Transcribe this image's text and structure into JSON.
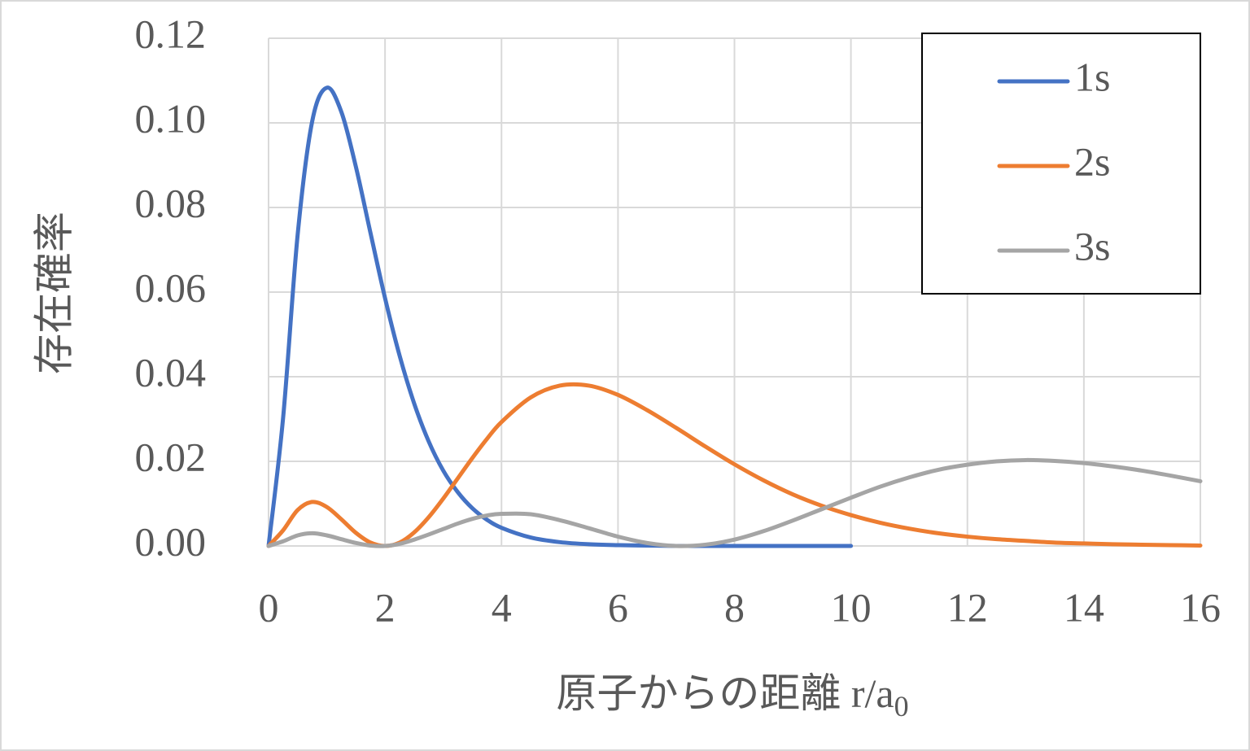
{
  "chart_data": {
    "type": "line",
    "y_label": "存在確率",
    "x_label": {
      "text": "原子からの距離 r/a",
      "subscript": "0"
    },
    "x": [
      0,
      0.25,
      0.5,
      0.75,
      1,
      1.25,
      1.5,
      1.75,
      2,
      2.25,
      2.5,
      2.75,
      3,
      3.25,
      3.5,
      3.75,
      4,
      4.5,
      5,
      5.5,
      6,
      6.5,
      7,
      7.5,
      8,
      8.5,
      9,
      9.5,
      10,
      10.5,
      11,
      11.5,
      12,
      12.5,
      13,
      13.5,
      14,
      14.5,
      15,
      15.5,
      16
    ],
    "series": [
      {
        "name": "1s",
        "color": "#4472c4",
        "values": [
          0,
          0.0303,
          0.0736,
          0.1004,
          0.1083,
          0.1026,
          0.0896,
          0.074,
          0.0586,
          0.045,
          0.0337,
          0.0247,
          0.0178,
          0.0127,
          0.0089,
          0.0062,
          0.0043,
          0.002,
          0.0009,
          0.0004,
          0.0002,
          0.0001,
          0,
          0,
          0,
          0,
          0,
          0,
          0,
          null,
          null,
          null,
          null,
          null,
          null,
          null,
          null,
          null,
          null,
          null,
          null
        ]
      },
      {
        "name": "2s",
        "color": "#ed7d31",
        "values": [
          0,
          0.0037,
          0.0085,
          0.0104,
          0.0092,
          0.0063,
          0.0031,
          0.0008,
          0,
          0.0008,
          0.0032,
          0.0068,
          0.0112,
          0.016,
          0.0208,
          0.0253,
          0.0293,
          0.0351,
          0.0379,
          0.0379,
          0.0357,
          0.0321,
          0.0279,
          0.0235,
          0.0193,
          0.0155,
          0.0122,
          0.0095,
          0.0073,
          0.0055,
          0.0041,
          0.003,
          0.0022,
          0.0016,
          0.0012,
          0.0008,
          0.0006,
          0.0004,
          0.0003,
          0.0002,
          0.0001
        ]
      },
      {
        "name": "3s",
        "color": "#a5a5a5",
        "values": [
          0,
          0.0011,
          0.0025,
          0.003,
          0.0025,
          0.0016,
          0.0007,
          0.0001,
          0,
          0.0005,
          0.0015,
          0.0027,
          0.004,
          0.0053,
          0.0064,
          0.0072,
          0.0076,
          0.0075,
          0.0061,
          0.0042,
          0.0022,
          0.0007,
          0,
          0.0003,
          0.0015,
          0.0035,
          0.006,
          0.0087,
          0.0114,
          0.014,
          0.0162,
          0.018,
          0.0192,
          0.02,
          0.0203,
          0.0201,
          0.0196,
          0.0188,
          0.0178,
          0.0166,
          0.0153
        ]
      }
    ],
    "xlim": [
      0,
      16
    ],
    "xticks": [
      0,
      2,
      4,
      6,
      8,
      10,
      12,
      14,
      16
    ],
    "ylim": [
      0,
      0.12
    ],
    "yticks": [
      {
        "value": 0,
        "label": "0.00"
      },
      {
        "value": 0.02,
        "label": "0.02"
      },
      {
        "value": 0.04,
        "label": "0.04"
      },
      {
        "value": 0.06,
        "label": "0.06"
      },
      {
        "value": 0.08,
        "label": "0.08"
      },
      {
        "value": 0.1,
        "label": "0.10"
      },
      {
        "value": 0.12,
        "label": "0.12"
      }
    ],
    "grid": true,
    "legend": "upper-right"
  }
}
